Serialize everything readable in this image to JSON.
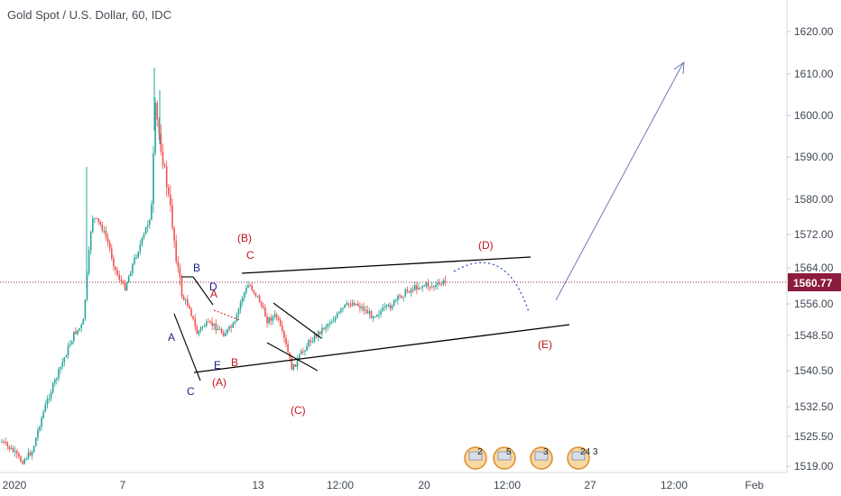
{
  "header": {
    "title": "Gold Spot / U.S. Dollar, 60, IDC"
  },
  "chart_data": {
    "type": "candlestick",
    "title": "Gold Spot / U.S. Dollar, 60, IDC",
    "price_axis": {
      "ticks": [
        "1620.00",
        "1610.00",
        "1600.00",
        "1590.00",
        "1580.00",
        "1572.00",
        "1564.00",
        "1556.00",
        "1548.50",
        "1540.50",
        "1532.50",
        "1525.50",
        "1519.00"
      ],
      "last_price": "1560.77"
    },
    "time_axis": {
      "ticks": [
        "2020",
        "7",
        "13",
        "12:00",
        "20",
        "12:00",
        "27",
        "12:00",
        "Feb"
      ]
    },
    "wave_labels": {
      "blue": [
        "A",
        "B",
        "C",
        "D",
        "E"
      ],
      "red": [
        "(A)",
        "(B)",
        "(C)",
        "(D)",
        "(E)",
        "A",
        "B",
        "C"
      ]
    },
    "event_badges": [
      "2",
      "5",
      "3",
      "24 3"
    ],
    "colors": {
      "up": "#26a69a",
      "down": "#ef5350",
      "last_price": "#8c1c3d",
      "trendline": "#000000",
      "projection": "#6a7bb8",
      "blue_label": "#1b1f8c",
      "red_label": "#c0161c"
    }
  }
}
